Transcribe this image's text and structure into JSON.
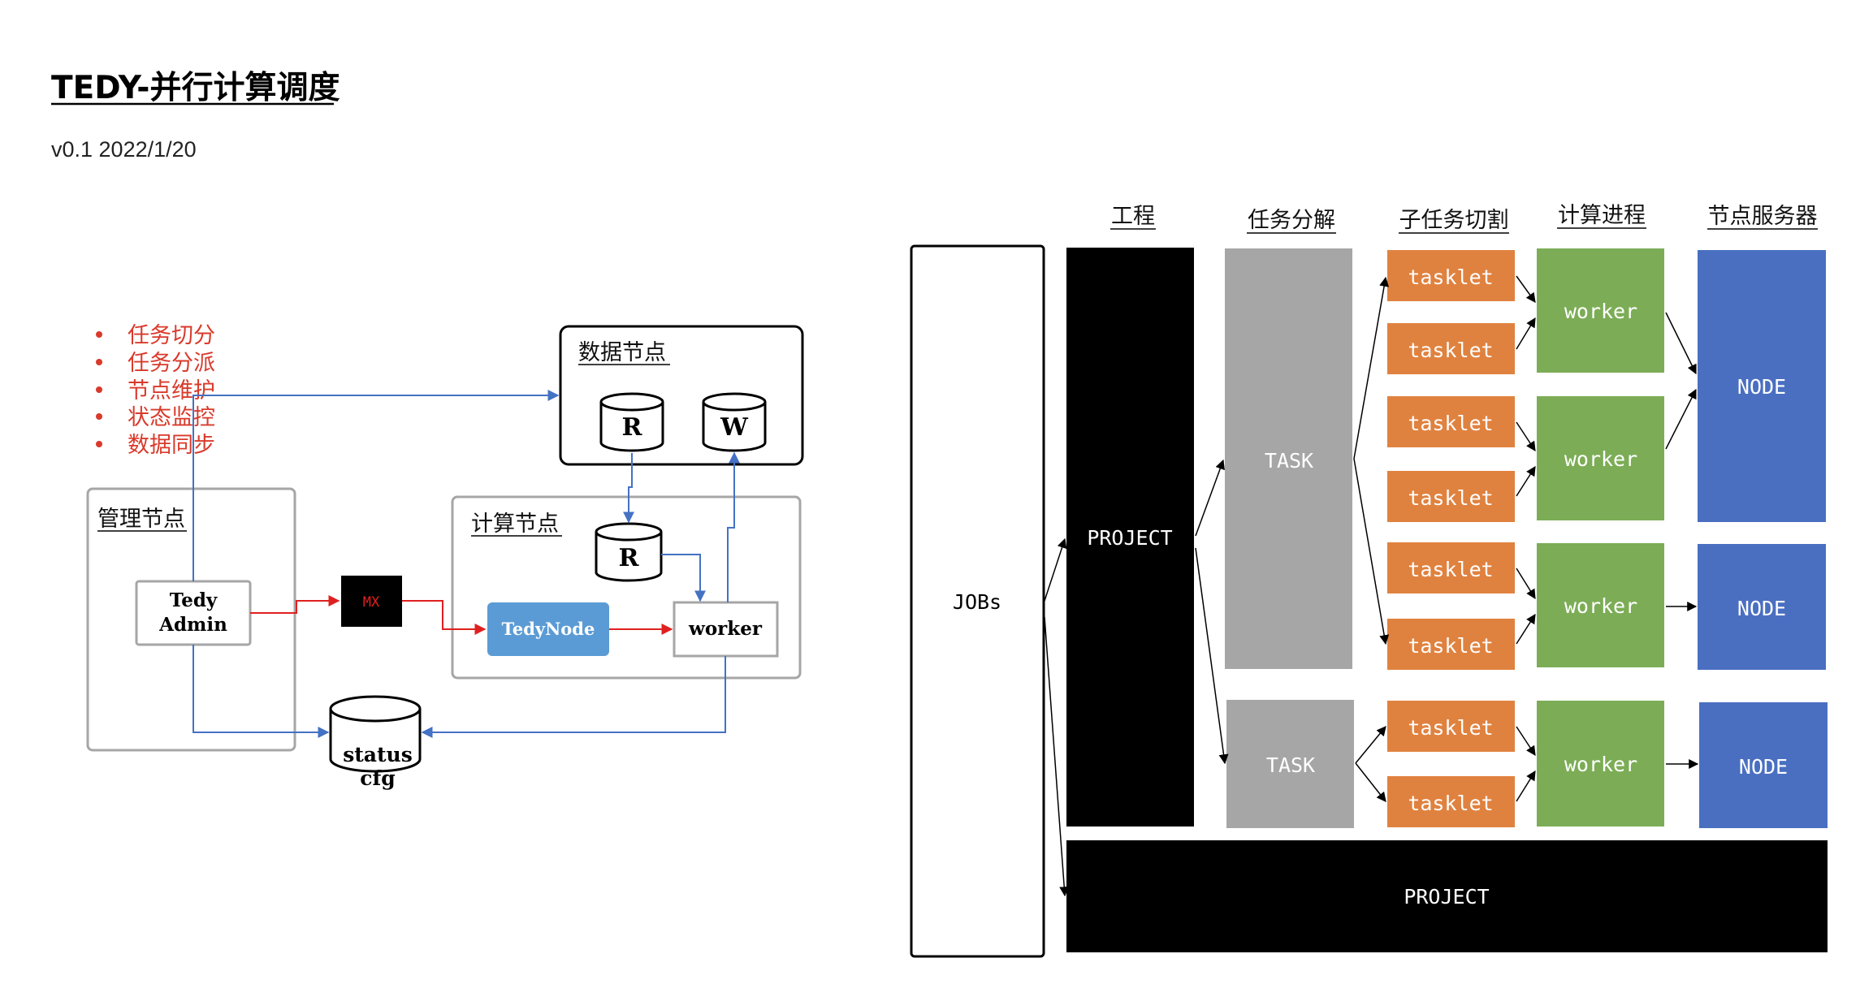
{
  "doc": {
    "title": "TEDY-并行计算调度",
    "subtitle": "v0.1 2022/1/20"
  },
  "left_diagram": {
    "features": [
      "任务切分",
      "任务分派",
      "节点维护",
      "状态监控",
      "数据同步"
    ],
    "data_node": {
      "label": "数据节点",
      "read": "R",
      "write": "W"
    },
    "manage_node": {
      "label": "管理节点",
      "admin": [
        "Tedy",
        "Admin"
      ]
    },
    "mq": "MX",
    "compute_node": {
      "label": "计算节点",
      "cache": "R",
      "tedynode": "TedyNode",
      "worker": "worker"
    },
    "status_store": [
      "status",
      "cfg"
    ]
  },
  "right_diagram": {
    "headers": [
      "工程",
      "任务分解",
      "子任务切割",
      "计算进程",
      "节点服务器"
    ],
    "jobs": "JOBs",
    "project": "PROJECT",
    "task": "TASK",
    "tasklet": "tasklet",
    "worker": "worker",
    "node": "NODE"
  },
  "colors": {
    "red_text": "#d93a2b",
    "red_arrow": "#e02020",
    "blue_line": "#4472c4",
    "tedynode_fill": "#5b9bd5",
    "task_gray": "#a6a6a6",
    "tasklet_orange": "#e0823f",
    "worker_green": "#7cad56",
    "node_blue": "#4a6fc1",
    "black": "#000000"
  }
}
